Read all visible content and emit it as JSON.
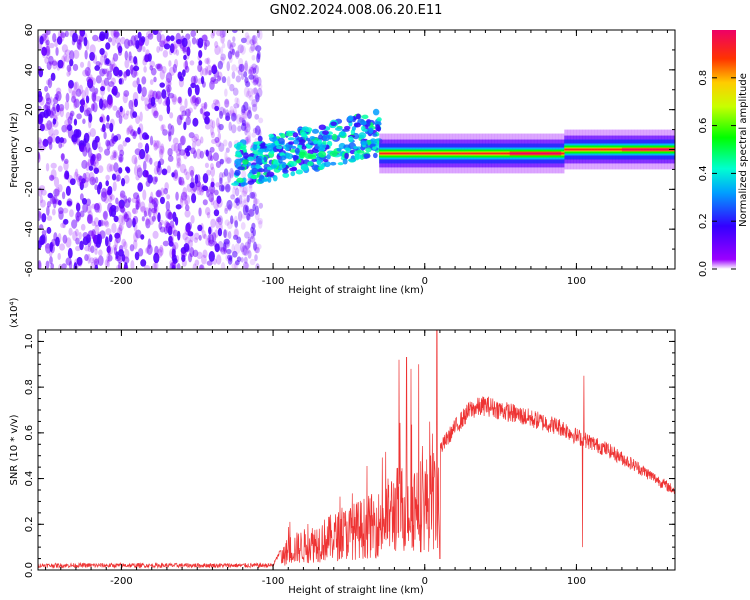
{
  "title": "GN02.2024.008.06.20.E11",
  "chart_data": [
    {
      "type": "heatmap",
      "name": "spectrogram",
      "xlabel": "Height of straight line (km)",
      "ylabel": "Frequency (Hz)",
      "xlim": [
        -255,
        165
      ],
      "ylim": [
        -60,
        60
      ],
      "xticks": [
        "-200",
        "-100",
        "0",
        "100"
      ],
      "xtick_values": [
        -200,
        -100,
        0,
        100
      ],
      "yticks": [
        "-60",
        "-40",
        "-20",
        "0",
        "20",
        "40",
        "60"
      ],
      "ytick_values": [
        -60,
        -40,
        -20,
        0,
        20,
        40,
        60
      ],
      "colorbar": {
        "label": "Normalized spectral amplitude",
        "range": [
          0,
          1
        ],
        "ticks": [
          "0.0",
          "0.2",
          "0.4",
          "0.6",
          "0.8"
        ],
        "tick_values": [
          0.0,
          0.2,
          0.4,
          0.6,
          0.8
        ]
      },
      "regions": [
        {
          "description": "broadband noise",
          "x_range": [
            -255,
            -110
          ],
          "y_range": [
            -60,
            60
          ],
          "amplitude": 0.15
        },
        {
          "description": "scattered signal",
          "x_range": [
            -125,
            -30
          ],
          "y_range": [
            -20,
            15
          ],
          "amplitude": 0.35
        },
        {
          "description": "narrow line",
          "x_range": [
            -30,
            165
          ],
          "y_range": [
            -5,
            5
          ],
          "amplitude": 0.9
        }
      ]
    },
    {
      "type": "line",
      "name": "snr",
      "xlabel": "Height of straight line (km)",
      "ylabel": "SNR (10 * v/v)",
      "yscale_note": "(x10⁴)",
      "xlim": [
        -255,
        165
      ],
      "ylim": [
        0,
        1.05
      ],
      "xticks": [
        "-200",
        "-100",
        "0",
        "100"
      ],
      "xtick_values": [
        -200,
        -100,
        0,
        100
      ],
      "yticks": [
        "0.0",
        "0.2",
        "0.4",
        "0.6",
        "0.8",
        "1.0"
      ],
      "ytick_values": [
        0.0,
        0.2,
        0.4,
        0.6,
        0.8,
        1.0
      ],
      "color": "#ee3333",
      "envelope": {
        "x": [
          -255,
          -200,
          -150,
          -100,
          -90,
          -80,
          -60,
          -40,
          -30,
          -20,
          -10,
          0,
          10,
          20,
          30,
          40,
          50,
          60,
          70,
          80,
          90,
          100,
          110,
          120,
          140,
          165
        ],
        "y": [
          0.02,
          0.02,
          0.02,
          0.02,
          0.15,
          0.18,
          0.25,
          0.32,
          0.35,
          0.45,
          0.5,
          0.5,
          0.55,
          0.65,
          0.73,
          0.75,
          0.73,
          0.71,
          0.69,
          0.67,
          0.65,
          0.61,
          0.58,
          0.55,
          0.47,
          0.36
        ]
      },
      "spikes": [
        {
          "x": -17,
          "y": 0.92
        },
        {
          "x": -12,
          "y": 0.93
        },
        {
          "x": -9,
          "y": 0.88
        },
        {
          "x": -4,
          "y": 0.9
        },
        {
          "x": 8,
          "y": 1.05
        },
        {
          "x": 10,
          "y": 0.05
        },
        {
          "x": 104,
          "y": 0.1
        },
        {
          "x": 105,
          "y": 0.85
        }
      ]
    }
  ]
}
